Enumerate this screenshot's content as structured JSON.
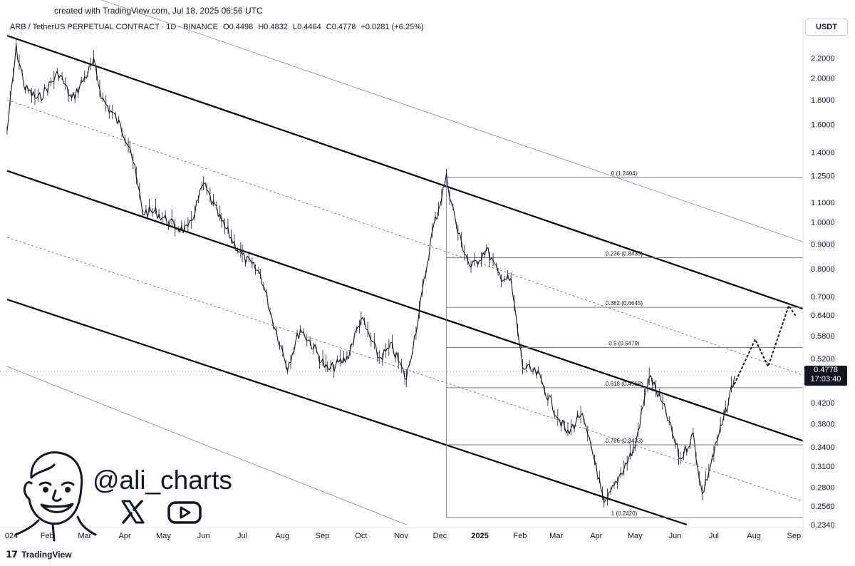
{
  "caption": "created with TradingView.com, Jul 18, 2025 06:56 UTC",
  "symbol": {
    "name": "ARB / TetherUS PERPETUAL CONTRACT · 1D · BINANCE",
    "open": "O0.4498",
    "high": "H0.4832",
    "low": "L0.4464",
    "close": "C0.4778",
    "change": "+0.0281 (+6.25%)"
  },
  "currency": "USDT",
  "last_price": {
    "value": "0.4778",
    "countdown": "17:03:40"
  },
  "handle": "@ali_charts",
  "footer_brand": "TradingView",
  "icons": {
    "social_x": "x-icon",
    "youtube": "youtube-icon",
    "logo": "tradingview-logo-icon"
  },
  "colors": {
    "line": "#131722",
    "grid_dotted": "#555555",
    "fib_line": "#787b86",
    "background": "#ffffff"
  },
  "chart_data": {
    "type": "candlestick",
    "scale": "log",
    "ylim": [
      0.234,
      2.45
    ],
    "y_ticks": [
      2.2,
      2.0,
      1.8,
      1.6,
      1.4,
      1.25,
      1.1,
      1.0,
      0.9,
      0.8,
      0.7,
      0.64,
      0.58,
      0.52,
      0.42,
      0.38,
      0.34,
      0.31,
      0.28,
      0.256,
      0.234
    ],
    "y_tick_labels": [
      "2.2000",
      "2.0000",
      "1.8000",
      "1.6000",
      "1.4000",
      "1.2500",
      "1.1000",
      "1.0000",
      "0.9000",
      "0.8000",
      "0.7000",
      "0.6400",
      "0.5800",
      "0.5200",
      "0.4200",
      "0.3800",
      "0.3400",
      "0.3100",
      "0.2800",
      "0.2560",
      "0.2340"
    ],
    "x_labels": [
      "024",
      "Feb",
      "Mar",
      "Apr",
      "May",
      "Jun",
      "Jul",
      "Aug",
      "Sep",
      "Oct",
      "Nov",
      "Dec",
      "2025",
      "Feb",
      "Mar",
      "Apr",
      "May",
      "Jun",
      "Jul",
      "Aug",
      "Sep"
    ],
    "x_dates": [
      "2024-01",
      "2024-02",
      "2024-03",
      "2024-04",
      "2024-05",
      "2024-06",
      "2024-07",
      "2024-08",
      "2024-09",
      "2024-10",
      "2024-11",
      "2024-12",
      "2025-01",
      "2025-02",
      "2025-03",
      "2025-04",
      "2025-05",
      "2025-06",
      "2025-07",
      "2025-08",
      "2025-09"
    ],
    "price_path": [
      [
        "2024-01-01",
        1.55
      ],
      [
        "2024-01-08",
        2.3
      ],
      [
        "2024-01-15",
        1.9
      ],
      [
        "2024-01-25",
        1.8
      ],
      [
        "2024-02-10",
        2.05
      ],
      [
        "2024-02-20",
        1.8
      ],
      [
        "2024-03-01",
        2.0
      ],
      [
        "2024-03-08",
        2.15
      ],
      [
        "2024-03-15",
        1.8
      ],
      [
        "2024-03-25",
        1.65
      ],
      [
        "2024-04-05",
        1.45
      ],
      [
        "2024-04-15",
        1.05
      ],
      [
        "2024-04-25",
        1.05
      ],
      [
        "2024-05-10",
        0.98
      ],
      [
        "2024-05-20",
        0.96
      ],
      [
        "2024-06-01",
        1.2
      ],
      [
        "2024-06-15",
        1.0
      ],
      [
        "2024-07-01",
        0.85
      ],
      [
        "2024-07-15",
        0.78
      ],
      [
        "2024-07-25",
        0.62
      ],
      [
        "2024-08-05",
        0.5
      ],
      [
        "2024-08-15",
        0.6
      ],
      [
        "2024-08-25",
        0.55
      ],
      [
        "2024-09-05",
        0.49
      ],
      [
        "2024-09-20",
        0.52
      ],
      [
        "2024-10-01",
        0.63
      ],
      [
        "2024-10-15",
        0.52
      ],
      [
        "2024-10-25",
        0.55
      ],
      [
        "2024-11-05",
        0.47
      ],
      [
        "2024-11-15",
        0.65
      ],
      [
        "2024-11-25",
        0.95
      ],
      [
        "2024-12-06",
        1.24
      ],
      [
        "2024-12-15",
        0.95
      ],
      [
        "2024-12-25",
        0.8
      ],
      [
        "2025-01-06",
        0.88
      ],
      [
        "2025-01-15",
        0.78
      ],
      [
        "2025-01-25",
        0.75
      ],
      [
        "2025-02-03",
        0.5
      ],
      [
        "2025-02-15",
        0.48
      ],
      [
        "2025-02-25",
        0.42
      ],
      [
        "2025-03-10",
        0.36
      ],
      [
        "2025-03-20",
        0.4
      ],
      [
        "2025-04-01",
        0.31
      ],
      [
        "2025-04-07",
        0.255
      ],
      [
        "2025-04-20",
        0.3
      ],
      [
        "2025-05-01",
        0.34
      ],
      [
        "2025-05-12",
        0.48
      ],
      [
        "2025-05-25",
        0.4
      ],
      [
        "2025-06-05",
        0.32
      ],
      [
        "2025-06-15",
        0.36
      ],
      [
        "2025-06-22",
        0.27
      ],
      [
        "2025-07-01",
        0.33
      ],
      [
        "2025-07-10",
        0.4
      ],
      [
        "2025-07-17",
        0.4778
      ]
    ],
    "projection": [
      [
        "2025-07-17",
        0.46
      ],
      [
        "2025-08-02",
        0.57
      ],
      [
        "2025-08-12",
        0.5
      ],
      [
        "2025-08-28",
        0.67
      ],
      [
        "2025-09-02",
        0.64
      ]
    ],
    "fibonacci": [
      {
        "label": "0 (1.2404)",
        "value": 1.2404
      },
      {
        "label": "0.236 (0.8435)",
        "value": 0.8435
      },
      {
        "label": "0.382 (0.6645)",
        "value": 0.6645
      },
      {
        "label": "0.5 (0.5479)",
        "value": 0.5479
      },
      {
        "label": "0.618 (0.4518)",
        "value": 0.4518
      },
      {
        "label": "0.786 (0.3433)",
        "value": 0.3433
      },
      {
        "label": "1 (0.2420)",
        "value": 0.242
      }
    ],
    "channel_lines": [
      {
        "style": "solid-bold",
        "points": [
          [
            "2024-01-01",
            2.45
          ],
          [
            "2025-09-08",
            0.66
          ]
        ]
      },
      {
        "style": "solid-bold",
        "points": [
          [
            "2024-01-01",
            1.28
          ],
          [
            "2025-09-08",
            0.35
          ]
        ]
      },
      {
        "style": "solid-bold",
        "points": [
          [
            "2024-01-01",
            0.69
          ],
          [
            "2025-06-10",
            0.234
          ]
        ]
      },
      {
        "style": "dotted",
        "points": [
          [
            "2024-01-01",
            1.8
          ],
          [
            "2025-09-08",
            0.48
          ]
        ]
      },
      {
        "style": "dotted",
        "points": [
          [
            "2024-01-01",
            0.93
          ],
          [
            "2025-09-08",
            0.262
          ]
        ]
      },
      {
        "style": "thin",
        "points": [
          [
            "2024-01-01",
            3.4
          ],
          [
            "2025-09-08",
            0.91
          ]
        ]
      },
      {
        "style": "thin",
        "points": [
          [
            "2024-01-01",
            0.5
          ],
          [
            "2024-11-05",
            0.234
          ]
        ]
      }
    ],
    "grid": false
  }
}
